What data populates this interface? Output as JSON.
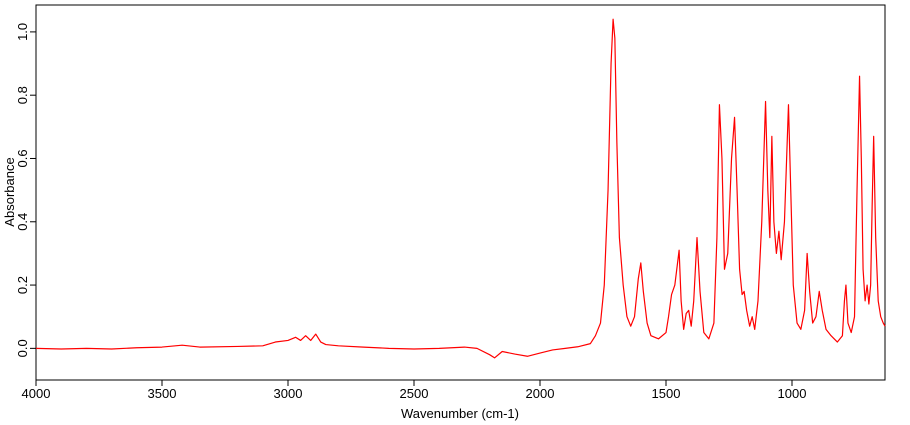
{
  "chart_data": {
    "type": "line",
    "xlabel": "Wavenumber (cm-1)",
    "ylabel": "Absorbance",
    "color": "#ff0000",
    "x": [
      4000,
      3900,
      3800,
      3700,
      3600,
      3500,
      3420,
      3350,
      3200,
      3100,
      3050,
      3000,
      2970,
      2950,
      2930,
      2910,
      2890,
      2870,
      2850,
      2800,
      2700,
      2600,
      2500,
      2400,
      2300,
      2250,
      2200,
      2180,
      2150,
      2100,
      2050,
      2000,
      1950,
      1900,
      1850,
      1800,
      1780,
      1760,
      1745,
      1730,
      1718,
      1710,
      1703,
      1695,
      1685,
      1670,
      1655,
      1640,
      1625,
      1610,
      1600,
      1590,
      1575,
      1560,
      1530,
      1500,
      1490,
      1478,
      1465,
      1448,
      1440,
      1430,
      1420,
      1410,
      1400,
      1390,
      1377,
      1365,
      1350,
      1330,
      1310,
      1298,
      1288,
      1278,
      1268,
      1255,
      1240,
      1228,
      1218,
      1208,
      1198,
      1190,
      1180,
      1168,
      1158,
      1148,
      1135,
      1120,
      1105,
      1096,
      1088,
      1080,
      1072,
      1062,
      1052,
      1043,
      1030,
      1014,
      1005,
      995,
      980,
      965,
      950,
      940,
      930,
      918,
      905,
      892,
      880,
      865,
      845,
      820,
      800,
      792,
      786,
      778,
      765,
      752,
      742,
      732,
      725,
      718,
      710,
      702,
      695,
      688,
      682,
      676,
      668,
      658,
      648,
      638,
      631
    ],
    "values": [
      0.0,
      -0.002,
      0.0,
      -0.002,
      0.002,
      0.004,
      0.01,
      0.004,
      0.006,
      0.008,
      0.02,
      0.025,
      0.035,
      0.025,
      0.04,
      0.025,
      0.045,
      0.02,
      0.012,
      0.008,
      0.004,
      0.0,
      -0.002,
      0.0,
      0.004,
      0.0,
      -0.02,
      -0.03,
      -0.01,
      -0.018,
      -0.025,
      -0.015,
      -0.005,
      0.0,
      0.005,
      0.015,
      0.04,
      0.08,
      0.2,
      0.5,
      0.9,
      1.04,
      0.98,
      0.65,
      0.35,
      0.2,
      0.1,
      0.07,
      0.1,
      0.22,
      0.27,
      0.18,
      0.08,
      0.04,
      0.03,
      0.05,
      0.1,
      0.17,
      0.2,
      0.31,
      0.15,
      0.06,
      0.11,
      0.12,
      0.07,
      0.15,
      0.35,
      0.18,
      0.05,
      0.03,
      0.08,
      0.35,
      0.77,
      0.6,
      0.25,
      0.3,
      0.6,
      0.73,
      0.5,
      0.25,
      0.17,
      0.18,
      0.12,
      0.07,
      0.1,
      0.06,
      0.15,
      0.4,
      0.78,
      0.5,
      0.35,
      0.67,
      0.4,
      0.3,
      0.37,
      0.28,
      0.4,
      0.77,
      0.5,
      0.2,
      0.08,
      0.06,
      0.12,
      0.3,
      0.18,
      0.08,
      0.1,
      0.18,
      0.12,
      0.06,
      0.04,
      0.02,
      0.04,
      0.15,
      0.2,
      0.08,
      0.05,
      0.1,
      0.5,
      0.86,
      0.6,
      0.25,
      0.15,
      0.2,
      0.14,
      0.2,
      0.45,
      0.67,
      0.35,
      0.15,
      0.1,
      0.08,
      0.07
    ],
    "xlim": [
      4000,
      631
    ],
    "xticks": [
      4000,
      3500,
      3000,
      2500,
      2000,
      1500,
      1000
    ],
    "ylim": [
      -0.1,
      1.085
    ],
    "yticks": [
      {
        "value": 0,
        "label": "0.0"
      },
      0.2,
      0.4,
      0.6,
      0.8,
      {
        "value": 1,
        "label": "1.0"
      }
    ]
  }
}
